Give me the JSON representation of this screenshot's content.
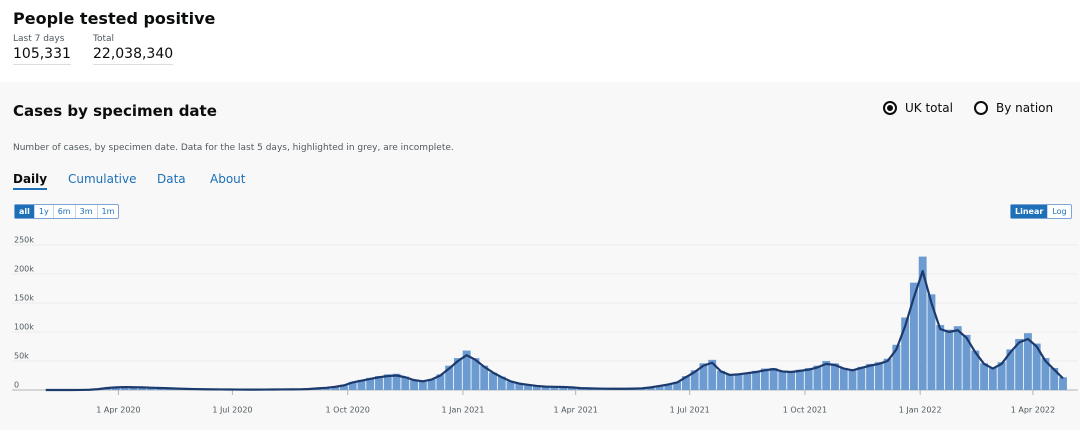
{
  "header": {
    "title": "People tested positive",
    "stats": [
      {
        "label": "Last 7 days",
        "value": "105,331"
      },
      {
        "label": "Total",
        "value": "22,038,340"
      }
    ]
  },
  "card": {
    "title": "Cases by specimen date",
    "options": [
      {
        "label": "UK total",
        "checked": true
      },
      {
        "label": "By nation",
        "checked": false
      }
    ],
    "description": "Number of cases, by specimen date. Data for the last 5 days, highlighted in grey, are incomplete.",
    "tabs": [
      "Daily",
      "Cumulative",
      "Data",
      "About"
    ],
    "range_buttons": [
      "all",
      "1y",
      "6m",
      "3m",
      "1m"
    ],
    "scale_buttons": [
      "Linear",
      "Log"
    ]
  },
  "chart_data": {
    "type": "bar-line",
    "x": [
      "2020-02-03",
      "2020-02-10",
      "2020-02-17",
      "2020-02-24",
      "2020-03-02",
      "2020-03-09",
      "2020-03-16",
      "2020-03-23",
      "2020-03-30",
      "2020-04-06",
      "2020-04-13",
      "2020-04-20",
      "2020-04-27",
      "2020-05-04",
      "2020-05-11",
      "2020-05-18",
      "2020-05-25",
      "2020-06-01",
      "2020-06-08",
      "2020-06-15",
      "2020-06-22",
      "2020-06-29",
      "2020-07-06",
      "2020-07-13",
      "2020-07-20",
      "2020-07-27",
      "2020-08-03",
      "2020-08-10",
      "2020-08-17",
      "2020-08-24",
      "2020-08-31",
      "2020-09-07",
      "2020-09-14",
      "2020-09-21",
      "2020-09-28",
      "2020-10-05",
      "2020-10-12",
      "2020-10-19",
      "2020-10-26",
      "2020-11-02",
      "2020-11-09",
      "2020-11-16",
      "2020-11-23",
      "2020-11-30",
      "2020-12-07",
      "2020-12-14",
      "2020-12-21",
      "2020-12-28",
      "2021-01-04",
      "2021-01-11",
      "2021-01-18",
      "2021-01-25",
      "2021-02-01",
      "2021-02-08",
      "2021-02-15",
      "2021-02-22",
      "2021-03-01",
      "2021-03-08",
      "2021-03-15",
      "2021-03-22",
      "2021-03-29",
      "2021-04-05",
      "2021-04-12",
      "2021-04-19",
      "2021-04-26",
      "2021-05-03",
      "2021-05-10",
      "2021-05-17",
      "2021-05-24",
      "2021-05-31",
      "2021-06-07",
      "2021-06-14",
      "2021-06-21",
      "2021-06-28",
      "2021-07-05",
      "2021-07-12",
      "2021-07-19",
      "2021-07-26",
      "2021-08-02",
      "2021-08-09",
      "2021-08-16",
      "2021-08-23",
      "2021-08-30",
      "2021-09-06",
      "2021-09-13",
      "2021-09-20",
      "2021-09-27",
      "2021-10-04",
      "2021-10-11",
      "2021-10-18",
      "2021-10-25",
      "2021-11-01",
      "2021-11-08",
      "2021-11-15",
      "2021-11-22",
      "2021-11-29",
      "2021-12-06",
      "2021-12-13",
      "2021-12-20",
      "2021-12-27",
      "2022-01-03",
      "2022-01-10",
      "2022-01-17",
      "2022-01-24",
      "2022-01-31",
      "2022-02-07",
      "2022-02-14",
      "2022-02-21",
      "2022-02-28",
      "2022-03-07",
      "2022-03-14",
      "2022-03-21",
      "2022-03-28",
      "2022-04-04",
      "2022-04-11",
      "2022-04-18",
      "2022-04-25"
    ],
    "series": [
      {
        "kind": "bar",
        "color": "#6c9bd2",
        "values": [
          0,
          0,
          0,
          40,
          150,
          600,
          2000,
          4200,
          5100,
          5600,
          5000,
          4700,
          4100,
          3600,
          3100,
          2400,
          2100,
          1700,
          1300,
          1200,
          1000,
          900,
          850,
          700,
          750,
          800,
          950,
          1000,
          1200,
          1250,
          1900,
          3000,
          4200,
          6000,
          9000,
          14000,
          17500,
          21000,
          24000,
          27000,
          28000,
          23000,
          18000,
          14000,
          19000,
          27000,
          42000,
          55000,
          68000,
          55000,
          42000,
          30000,
          23000,
          15000,
          11500,
          9000,
          7200,
          6000,
          5600,
          5400,
          4600,
          3300,
          2900,
          2600,
          2400,
          2200,
          2300,
          2500,
          3100,
          5000,
          7500,
          10000,
          14000,
          24000,
          34000,
          46000,
          52000,
          33000,
          27000,
          28000,
          30000,
          33000,
          37000,
          38000,
          33000,
          32000,
          35000,
          38000,
          42000,
          50000,
          46000,
          38000,
          36000,
          40000,
          45000,
          48000,
          54000,
          78000,
          125000,
          185000,
          230000,
          165000,
          112000,
          104000,
          110000,
          95000,
          68000,
          46000,
          38000,
          48000,
          70000,
          88000,
          98000,
          80000,
          55000,
          38000,
          22000
        ]
      },
      {
        "kind": "line",
        "color": "#1d3a6d",
        "values": [
          0,
          0,
          0,
          20,
          100,
          400,
          1500,
          3500,
          4500,
          5000,
          4800,
          4500,
          4000,
          3500,
          3000,
          2500,
          2000,
          1600,
          1300,
          1100,
          1000,
          900,
          800,
          700,
          700,
          800,
          900,
          1000,
          1100,
          1200,
          1700,
          2800,
          3800,
          5500,
          8000,
          13000,
          16000,
          19000,
          22000,
          24000,
          25000,
          22000,
          17000,
          15000,
          18000,
          25000,
          37000,
          50000,
          60000,
          52000,
          40000,
          30000,
          22000,
          15000,
          11000,
          9000,
          7000,
          5800,
          5500,
          5200,
          4500,
          3200,
          2800,
          2500,
          2300,
          2200,
          2200,
          2400,
          2900,
          4500,
          7000,
          9500,
          13000,
          22000,
          31000,
          42000,
          47000,
          32000,
          26000,
          27000,
          29000,
          31000,
          34000,
          36000,
          32000,
          31000,
          33000,
          35000,
          39000,
          45000,
          43000,
          37000,
          34000,
          38000,
          42000,
          45000,
          50000,
          70000,
          110000,
          160000,
          205000,
          150000,
          105000,
          100000,
          103000,
          90000,
          65000,
          45000,
          37000,
          45000,
          65000,
          82000,
          88000,
          75000,
          50000,
          35000,
          20000
        ]
      }
    ],
    "xlim": [
      "2020-01-31",
      "2022-04-29"
    ],
    "xticks": [
      {
        "value": "2020-04-01",
        "label": "1 Apr 2020"
      },
      {
        "value": "2020-07-01",
        "label": "1 Jul 2020"
      },
      {
        "value": "2020-10-01",
        "label": "1 Oct 2020"
      },
      {
        "value": "2021-01-01",
        "label": "1 Jan 2021"
      },
      {
        "value": "2021-04-01",
        "label": "1 Apr 2021"
      },
      {
        "value": "2021-07-01",
        "label": "1 Jul 2021"
      },
      {
        "value": "2021-10-01",
        "label": "1 Oct 2021"
      },
      {
        "value": "2022-01-01",
        "label": "1 Jan 2022"
      },
      {
        "value": "2022-04-01",
        "label": "1 Apr 2022"
      }
    ],
    "ylim": [
      0,
      280000
    ],
    "yticks": [
      0,
      {
        "value": 50000,
        "label": "50k"
      },
      {
        "value": 100000,
        "label": "100k"
      },
      {
        "value": 150000,
        "label": "150k"
      },
      {
        "value": 200000,
        "label": "200k"
      },
      {
        "value": 250000,
        "label": "250k"
      }
    ],
    "grid": true
  }
}
